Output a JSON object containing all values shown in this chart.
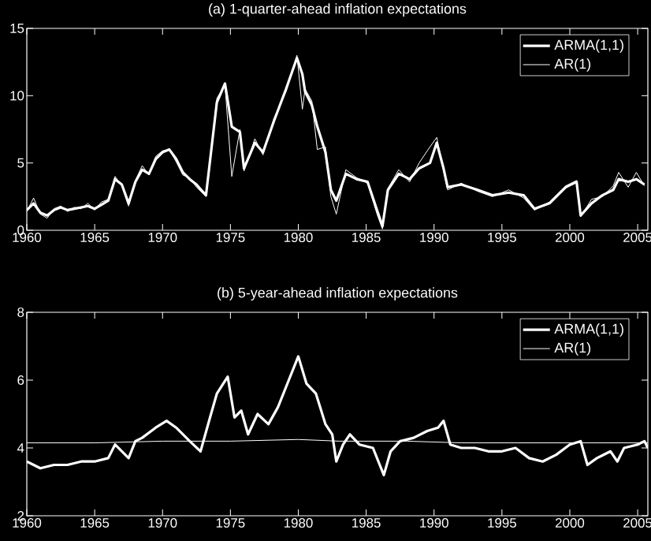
{
  "chart_data": [
    {
      "type": "line",
      "title": "(a) 1-quarter-ahead inflation expectations",
      "xlim": [
        1960,
        2005.75
      ],
      "xticks": [
        1960,
        1965,
        1970,
        1975,
        1980,
        1985,
        1990,
        1995,
        2000,
        2005
      ],
      "ylim": [
        0,
        15
      ],
      "yticks": [
        0,
        5,
        10,
        15
      ],
      "legend": "top right",
      "grid": false,
      "series": [
        {
          "name": "ARMA(1,1)",
          "color": "#ffffff",
          "x": [
            1960,
            1960.5,
            1961,
            1961.5,
            1962,
            1962.5,
            1963,
            1963.5,
            1964,
            1964.5,
            1965,
            1965.5,
            1966,
            1966.5,
            1967,
            1967.5,
            1968,
            1968.5,
            1969,
            1969.5,
            1970,
            1970.5,
            1971,
            1971.5,
            1972,
            1972.5,
            1973.2,
            1974,
            1974.6,
            1975.1,
            1975.7,
            1976,
            1976.8,
            1977.4,
            1978.2,
            1979.1,
            1979.9,
            1980.3,
            1980.5,
            1981,
            1981.4,
            1982,
            1982.4,
            1982.8,
            1983.5,
            1984.3,
            1985.1,
            1985.8,
            1986.2,
            1986.6,
            1987.4,
            1988.2,
            1988.9,
            1989.7,
            1990.2,
            1990.7,
            1991,
            1992,
            1993.2,
            1994.3,
            1995.5,
            1996.6,
            1997.4,
            1998.5,
            1999.7,
            2000.5,
            2000.8,
            2001.6,
            2002.4,
            2003.2,
            2003.6,
            2004.3,
            2004.9,
            2005.5
          ],
          "values": [
            1.5,
            2.0,
            1.3,
            1.1,
            1.5,
            1.7,
            1.5,
            1.6,
            1.7,
            1.8,
            1.6,
            1.9,
            2.2,
            3.8,
            3.4,
            2.0,
            3.6,
            4.5,
            4.2,
            5.3,
            5.8,
            6.0,
            5.3,
            4.3,
            3.8,
            3.4,
            2.6,
            9.5,
            10.9,
            7.7,
            7.3,
            4.6,
            6.5,
            5.8,
            8.1,
            10.5,
            12.8,
            11.6,
            10.3,
            9.3,
            7.7,
            5.8,
            3.0,
            2.2,
            4.2,
            3.8,
            3.6,
            1.5,
            0.3,
            3.0,
            4.2,
            3.8,
            4.6,
            5.0,
            6.5,
            4.6,
            3.2,
            3.4,
            3.0,
            2.6,
            2.8,
            2.6,
            1.6,
            2.0,
            3.2,
            3.6,
            1.1,
            2.0,
            2.6,
            3.0,
            3.8,
            3.6,
            3.8,
            3.4
          ]
        },
        {
          "name": "AR(1)",
          "color": "#ffffff",
          "x": [
            1960,
            1960.5,
            1961,
            1961.5,
            1962,
            1962.5,
            1963,
            1963.5,
            1964,
            1964.5,
            1965,
            1965.5,
            1966,
            1966.5,
            1967,
            1967.5,
            1968,
            1968.5,
            1969,
            1969.5,
            1970,
            1970.5,
            1971,
            1971.5,
            1972,
            1972.5,
            1973.2,
            1974,
            1974.6,
            1975.1,
            1975.7,
            1976,
            1976.8,
            1977.4,
            1978.2,
            1979.1,
            1979.9,
            1980.3,
            1980.5,
            1981,
            1981.4,
            1982,
            1982.4,
            1982.8,
            1983.5,
            1984.3,
            1985.1,
            1985.8,
            1986.2,
            1986.6,
            1987.4,
            1988.2,
            1988.9,
            1989.7,
            1990.2,
            1990.7,
            1991,
            1992,
            1993.2,
            1994.3,
            1995.5,
            1996.6,
            1997.4,
            1998.5,
            1999.7,
            2000.5,
            2000.8,
            2001.6,
            2002.4,
            2003.2,
            2003.6,
            2004.3,
            2004.9,
            2005.5
          ],
          "values": [
            1.4,
            2.4,
            1.2,
            0.9,
            1.6,
            1.8,
            1.4,
            1.7,
            1.6,
            2.0,
            1.5,
            2.1,
            2.3,
            4.0,
            3.3,
            1.8,
            3.7,
            4.8,
            4.1,
            5.5,
            5.9,
            6.0,
            5.1,
            4.1,
            3.9,
            3.2,
            2.5,
            9.8,
            10.8,
            4.0,
            7.5,
            4.4,
            6.8,
            5.6,
            8.3,
            10.3,
            13.0,
            9.0,
            10.5,
            9.6,
            6.0,
            6.2,
            2.5,
            1.2,
            4.5,
            3.9,
            3.5,
            1.2,
            0.1,
            3.1,
            4.5,
            3.6,
            5.0,
            6.2,
            6.9,
            4.4,
            3.0,
            3.5,
            2.9,
            2.5,
            3.0,
            2.4,
            1.5,
            2.1,
            3.3,
            3.7,
            1.0,
            2.3,
            2.5,
            3.3,
            4.3,
            3.2,
            4.3,
            3.3
          ]
        }
      ]
    },
    {
      "type": "line",
      "title": "(b) 5-year-ahead inflation expectations",
      "xlim": [
        1960,
        2005.75
      ],
      "xticks": [
        1960,
        1965,
        1970,
        1975,
        1980,
        1985,
        1990,
        1995,
        2000,
        2005
      ],
      "ylim": [
        2,
        8
      ],
      "yticks": [
        2,
        4,
        6,
        8
      ],
      "legend": "top right",
      "grid": false,
      "series": [
        {
          "name": "ARMA(1,1)",
          "color": "#ffffff",
          "x": [
            1960,
            1961,
            1962,
            1963,
            1964,
            1965,
            1966,
            1966.5,
            1967.5,
            1968,
            1968.5,
            1969.5,
            1970.3,
            1971,
            1972,
            1972.8,
            1973.5,
            1974,
            1974.8,
            1975.3,
            1975.8,
            1976.3,
            1977,
            1977.8,
            1978.5,
            1979.3,
            1980,
            1980.6,
            1981.3,
            1982,
            1982.5,
            1982.8,
            1983.3,
            1983.8,
            1984.5,
            1985.5,
            1986.3,
            1986.8,
            1987.5,
            1988.5,
            1989.5,
            1990.3,
            1990.7,
            1991.2,
            1992,
            1993,
            1994,
            1995,
            1996,
            1997,
            1998,
            1999,
            2000,
            2000.8,
            2001.3,
            2002,
            2003,
            2003.5,
            2004,
            2005,
            2005.5,
            2005.75
          ],
          "values": [
            3.6,
            3.4,
            3.5,
            3.5,
            3.6,
            3.6,
            3.7,
            4.1,
            3.7,
            4.2,
            4.3,
            4.6,
            4.8,
            4.6,
            4.2,
            3.9,
            4.9,
            5.6,
            6.1,
            4.9,
            5.1,
            4.4,
            5.0,
            4.7,
            5.2,
            6.0,
            6.7,
            5.9,
            5.6,
            4.7,
            4.4,
            3.6,
            4.1,
            4.4,
            4.1,
            4.0,
            3.2,
            3.9,
            4.2,
            4.3,
            4.5,
            4.6,
            4.8,
            4.1,
            4.0,
            4.0,
            3.9,
            3.9,
            4.0,
            3.7,
            3.6,
            3.8,
            4.1,
            4.2,
            3.5,
            3.7,
            3.9,
            3.6,
            4.0,
            4.1,
            4.2,
            4.0
          ]
        },
        {
          "name": "AR(1)",
          "color": "#ffffff",
          "x": [
            1960,
            1965,
            1970,
            1975,
            1980,
            1983,
            1988,
            1992,
            2000,
            2005.75
          ],
          "values": [
            4.15,
            4.15,
            4.2,
            4.2,
            4.25,
            4.2,
            4.2,
            4.15,
            4.15,
            4.15
          ]
        }
      ]
    }
  ]
}
